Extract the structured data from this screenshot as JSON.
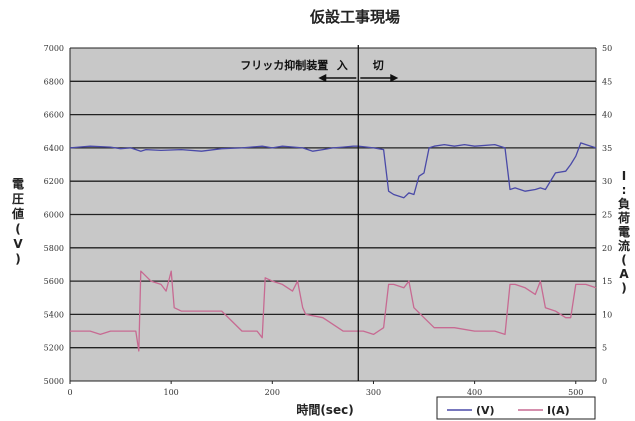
{
  "chart_data": {
    "type": "line",
    "title": "仮設工事現場",
    "xlabel": "時間(sec)",
    "ylabel_left_chars": [
      "電",
      "圧",
      "値",
      "(",
      "V",
      ")"
    ],
    "ylabel_right_chars": [
      "I",
      ":",
      "負",
      "荷",
      "電",
      "流",
      "(",
      "A",
      ")"
    ],
    "xlim": [
      0,
      520
    ],
    "ylim_left": [
      5000,
      7000
    ],
    "ylim_right": [
      0,
      50
    ],
    "x_ticks": [
      "0",
      "100",
      "200",
      "300",
      "400",
      "500"
    ],
    "y_left_ticks": [
      "5000",
      "5200",
      "5400",
      "5600",
      "5800",
      "6000",
      "6200",
      "6400",
      "6600",
      "6800",
      "7000"
    ],
    "y_right_ticks": [
      "0",
      "5",
      "10",
      "15",
      "20",
      "25",
      "30",
      "35",
      "40",
      "45",
      "50"
    ],
    "grid": true,
    "annotation": {
      "device_label": "フリッカ抑制装置",
      "on_label": "入",
      "off_label": "切",
      "switch_x": 285
    },
    "legend": {
      "placement": "bottom-right",
      "v_label": "(V)",
      "i_label": "I(A)"
    },
    "colors": {
      "voltage": "#4a4aa8",
      "current": "#c76a92",
      "plot_bg": "#c8c8c8",
      "grid": "#222222"
    },
    "series": [
      {
        "key": "voltage",
        "axis": "left",
        "x": [
          0,
          20,
          40,
          50,
          60,
          70,
          75,
          90,
          110,
          130,
          150,
          170,
          190,
          200,
          210,
          230,
          240,
          250,
          260,
          270,
          280,
          285,
          300,
          310,
          315,
          320,
          330,
          335,
          340,
          345,
          350,
          355,
          360,
          370,
          380,
          390,
          400,
          420,
          430,
          435,
          440,
          450,
          460,
          465,
          470,
          480,
          490,
          495,
          500,
          505,
          510,
          515,
          520
        ],
        "y": [
          6400,
          6410,
          6405,
          6395,
          6400,
          6380,
          6390,
          6385,
          6390,
          6380,
          6395,
          6400,
          6410,
          6400,
          6410,
          6400,
          6380,
          6390,
          6400,
          6405,
          6410,
          6410,
          6400,
          6390,
          6140,
          6120,
          6100,
          6130,
          6120,
          6230,
          6250,
          6400,
          6410,
          6420,
          6410,
          6420,
          6410,
          6420,
          6400,
          6150,
          6160,
          6140,
          6150,
          6160,
          6150,
          6250,
          6260,
          6300,
          6350,
          6430,
          6420,
          6410,
          6400
        ]
      },
      {
        "key": "current",
        "axis": "right",
        "x": [
          0,
          20,
          30,
          40,
          50,
          65,
          68,
          70,
          80,
          90,
          95,
          100,
          103,
          110,
          130,
          150,
          170,
          185,
          190,
          193,
          200,
          210,
          220,
          225,
          230,
          233,
          250,
          270,
          290,
          300,
          310,
          315,
          320,
          330,
          335,
          340,
          350,
          360,
          380,
          400,
          420,
          430,
          435,
          440,
          450,
          460,
          465,
          470,
          480,
          490,
          495,
          500,
          510,
          520
        ],
        "y": [
          7.5,
          7.5,
          7,
          7.5,
          7.5,
          7.5,
          4.5,
          16.5,
          15,
          14.5,
          13.5,
          16.5,
          11,
          10.5,
          10.5,
          10.5,
          7.5,
          7.5,
          6.5,
          15.5,
          15,
          14.5,
          13.5,
          15,
          11,
          10,
          9.5,
          7.5,
          7.5,
          7,
          8,
          14.5,
          14.5,
          14,
          15,
          11,
          9.5,
          8,
          8,
          7.5,
          7.5,
          7,
          14.5,
          14.5,
          14,
          13,
          15,
          11,
          10.5,
          9.5,
          9.5,
          14.5,
          14.5,
          14
        ]
      }
    ]
  }
}
